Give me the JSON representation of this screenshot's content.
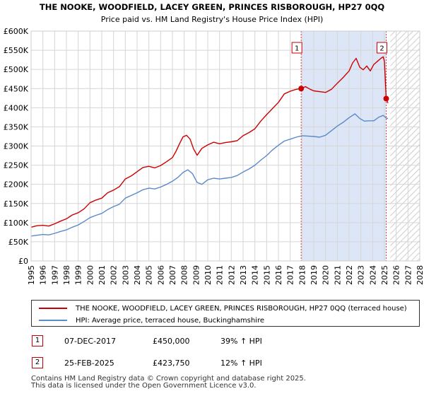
{
  "chart_data": {
    "type": "line",
    "title": "THE NOOKE, WOODFIELD, LACEY GREEN, PRINCES RISBOROUGH, HP27 0QQ",
    "subtitle": "Price paid vs. HM Land Registry's House Price Index (HPI)",
    "xlabel": "",
    "ylabel": "",
    "xlim": [
      1995,
      2028
    ],
    "ylim": [
      0,
      600000
    ],
    "x_ticks": [
      1995,
      1996,
      1997,
      1998,
      1999,
      2000,
      2001,
      2002,
      2003,
      2004,
      2005,
      2006,
      2007,
      2008,
      2009,
      2010,
      2011,
      2012,
      2013,
      2014,
      2015,
      2016,
      2017,
      2018,
      2019,
      2020,
      2021,
      2022,
      2023,
      2024,
      2025,
      2026,
      2027,
      2028
    ],
    "y_ticks": [
      0,
      50000,
      100000,
      150000,
      200000,
      250000,
      300000,
      350000,
      400000,
      450000,
      500000,
      550000,
      600000
    ],
    "y_tick_labels": [
      "£0",
      "£50K",
      "£100K",
      "£150K",
      "£200K",
      "£250K",
      "£300K",
      "£350K",
      "£400K",
      "£450K",
      "£500K",
      "£550K",
      "£600K"
    ],
    "grid": true,
    "shaded_region": {
      "from": 2017.93,
      "to": 2025.15,
      "color": "#dde6f7"
    },
    "hatched_region": {
      "from": 2025.5,
      "to": 2028
    },
    "series": [
      {
        "name": "THE NOOKE, WOODFIELD, LACEY GREEN, PRINCES RISBOROUGH, HP27 0QQ (terraced house)",
        "color": "#cc0000",
        "x": [
          1995,
          1995.5,
          1996,
          1996.5,
          1997,
          1997.5,
          1998,
          1998.5,
          1999,
          1999.5,
          2000,
          2000.5,
          2001,
          2001.5,
          2002,
          2002.5,
          2003,
          2003.5,
          2004,
          2004.5,
          2005,
          2005.5,
          2006,
          2006.5,
          2007,
          2007.3,
          2007.6,
          2007.9,
          2008.2,
          2008.5,
          2008.8,
          2009.1,
          2009.5,
          2010,
          2010.5,
          2011,
          2011.5,
          2012,
          2012.5,
          2013,
          2013.5,
          2014,
          2014.5,
          2015,
          2015.5,
          2016,
          2016.5,
          2017,
          2017.5,
          2017.93,
          2018.3,
          2018.7,
          2019,
          2019.5,
          2020,
          2020.5,
          2021,
          2021.5,
          2022,
          2022.3,
          2022.6,
          2022.9,
          2023.2,
          2023.5,
          2023.8,
          2024.1,
          2024.4,
          2024.7,
          2024.9,
          2025.0,
          2025.15,
          2025.3
        ],
        "y": [
          88000,
          92000,
          93000,
          91000,
          97000,
          104000,
          110000,
          120000,
          126000,
          136000,
          152000,
          159000,
          164000,
          178000,
          185000,
          194000,
          214000,
          222000,
          233000,
          244000,
          247000,
          243000,
          249000,
          259000,
          270000,
          286000,
          306000,
          324000,
          328000,
          318000,
          292000,
          276000,
          294000,
          303000,
          310000,
          306000,
          309000,
          311000,
          314000,
          327000,
          335000,
          345000,
          365000,
          382000,
          398000,
          414000,
          436000,
          443000,
          448000,
          450000,
          455000,
          448000,
          444000,
          442000,
          440000,
          448000,
          464000,
          479000,
          496000,
          517000,
          529000,
          506000,
          499000,
          509000,
          496000,
          513000,
          521000,
          529000,
          533000,
          521000,
          423750,
          412000
        ]
      },
      {
        "name": "HPI: Average price, terraced house, Buckinghamshire",
        "color": "#5b8ac8",
        "x": [
          1995,
          1995.5,
          1996,
          1996.5,
          1997,
          1997.5,
          1998,
          1998.5,
          1999,
          1999.5,
          2000,
          2000.5,
          2001,
          2001.5,
          2002,
          2002.5,
          2003,
          2003.5,
          2004,
          2004.5,
          2005,
          2005.5,
          2006,
          2006.5,
          2007,
          2007.5,
          2007.9,
          2008.3,
          2008.7,
          2009.1,
          2009.5,
          2010,
          2010.5,
          2011,
          2011.5,
          2012,
          2012.5,
          2013,
          2013.5,
          2014,
          2014.5,
          2015,
          2015.5,
          2016,
          2016.5,
          2017,
          2017.5,
          2018,
          2018.5,
          2019,
          2019.5,
          2020,
          2020.5,
          2021,
          2021.5,
          2022,
          2022.5,
          2022.9,
          2023.3,
          2023.7,
          2024.1,
          2024.5,
          2024.9,
          2025.2,
          2025.3
        ],
        "y": [
          65000,
          67000,
          69000,
          68000,
          72000,
          77000,
          81000,
          88000,
          94000,
          103000,
          113000,
          119000,
          124000,
          134000,
          142000,
          148000,
          164000,
          171000,
          178000,
          186000,
          190000,
          188000,
          193000,
          200000,
          208000,
          219000,
          231000,
          238000,
          228000,
          205000,
          200000,
          212000,
          216000,
          214000,
          216000,
          218000,
          223000,
          232000,
          240000,
          250000,
          263000,
          275000,
          290000,
          302000,
          313000,
          318000,
          323000,
          327000,
          326000,
          325000,
          323000,
          328000,
          340000,
          352000,
          362000,
          374000,
          384000,
          372000,
          365000,
          366000,
          366000,
          375000,
          380000,
          372000,
          372000
        ]
      }
    ],
    "annotations": [
      {
        "label": "1",
        "x": 2017.93,
        "y": 450000
      },
      {
        "label": "2",
        "x": 2025.15,
        "y": 423750
      }
    ]
  },
  "legend": {
    "red_label": "THE NOOKE, WOODFIELD, LACEY GREEN, PRINCES RISBOROUGH, HP27 0QQ (terraced house)",
    "blue_label": "HPI: Average price, terraced house, Buckinghamshire"
  },
  "transactions": [
    {
      "num": "1",
      "date": "07-DEC-2017",
      "price": "£450,000",
      "hpi": "39% ↑ HPI"
    },
    {
      "num": "2",
      "date": "25-FEB-2025",
      "price": "£423,750",
      "hpi": "12% ↑ HPI"
    }
  ],
  "footer": {
    "line1": "Contains HM Land Registry data © Crown copyright and database right 2025.",
    "line2": "This data is licensed under the Open Government Licence v3.0."
  }
}
